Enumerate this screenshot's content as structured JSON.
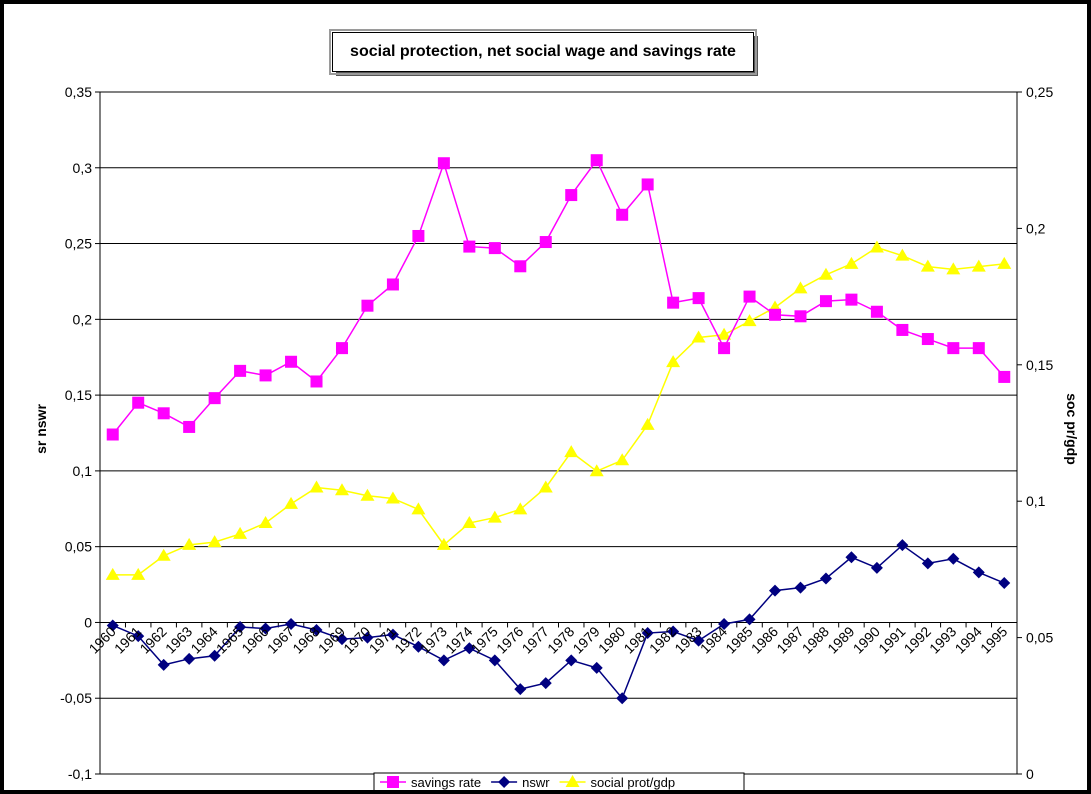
{
  "chart_data": {
    "type": "line",
    "title": "social protection, net social wage and savings rate",
    "ylabel": "sr nswr",
    "y2label": "soc pr/gdp",
    "ylim": [
      -0.1,
      0.35
    ],
    "y2lim": [
      0,
      0.25
    ],
    "yticks": [
      -0.1,
      -0.05,
      0,
      0.05,
      0.1,
      0.15,
      0.2,
      0.25,
      0.3,
      0.35
    ],
    "yticklabels": [
      "-0,1",
      "-0,05",
      "0",
      "0,05",
      "0,1",
      "0,15",
      "0,2",
      "0,25",
      "0,3",
      "0,35"
    ],
    "y2ticks": [
      0,
      0.05,
      0.1,
      0.15,
      0.2,
      0.25
    ],
    "y2ticklabels": [
      "0",
      "0,05",
      "0,1",
      "0,15",
      "0,2",
      "0,25"
    ],
    "grid": true,
    "legend_placement": "bottom",
    "categories": [
      "1960",
      "1961",
      "1962",
      "1963",
      "1964",
      "1965",
      "1966",
      "1967",
      "1968",
      "1969",
      "1970",
      "1971",
      "1972",
      "1973",
      "1974",
      "1975",
      "1976",
      "1977",
      "1978",
      "1979",
      "1980",
      "1981",
      "1982",
      "1983",
      "1984",
      "1985",
      "1986",
      "1987",
      "1988",
      "1989",
      "1990",
      "1991",
      "1992",
      "1993",
      "1994",
      "1995"
    ],
    "series": [
      {
        "name": "savings rate",
        "axis": "left",
        "color": "#ff00ff",
        "marker": "square",
        "values": [
          0.124,
          0.145,
          0.138,
          0.129,
          0.148,
          0.166,
          0.163,
          0.172,
          0.159,
          0.181,
          0.209,
          0.223,
          0.255,
          0.303,
          0.248,
          0.247,
          0.235,
          0.251,
          0.282,
          0.305,
          0.269,
          0.289,
          0.211,
          0.214,
          0.181,
          0.215,
          0.203,
          0.202,
          0.212,
          0.213,
          0.205,
          0.193,
          0.187,
          0.181,
          0.181,
          0.162
        ]
      },
      {
        "name": "nswr",
        "axis": "left",
        "color": "#000080",
        "marker": "diamond",
        "values": [
          -0.002,
          -0.009,
          -0.028,
          -0.024,
          -0.022,
          -0.003,
          -0.004,
          -0.001,
          -0.005,
          -0.011,
          -0.01,
          -0.008,
          -0.016,
          -0.025,
          -0.017,
          -0.025,
          -0.044,
          -0.04,
          -0.025,
          -0.03,
          -0.05,
          -0.007,
          -0.006,
          -0.012,
          -0.001,
          0.002,
          0.021,
          0.023,
          0.029,
          0.043,
          0.036,
          0.051,
          0.039,
          0.042,
          0.033,
          0.026
        ]
      },
      {
        "name": "social prot/gdp",
        "axis": "right",
        "color": "#ffff00",
        "marker": "triangle",
        "values": [
          0.073,
          0.073,
          0.08,
          0.084,
          0.085,
          0.088,
          0.092,
          0.099,
          0.105,
          0.104,
          0.102,
          0.101,
          0.097,
          0.084,
          0.092,
          0.094,
          0.097,
          0.105,
          0.118,
          0.111,
          0.115,
          0.128,
          0.151,
          0.16,
          0.161,
          0.166,
          0.171,
          0.178,
          0.183,
          0.187,
          0.193,
          0.19,
          0.186,
          0.185,
          0.186,
          0.187
        ]
      }
    ]
  }
}
